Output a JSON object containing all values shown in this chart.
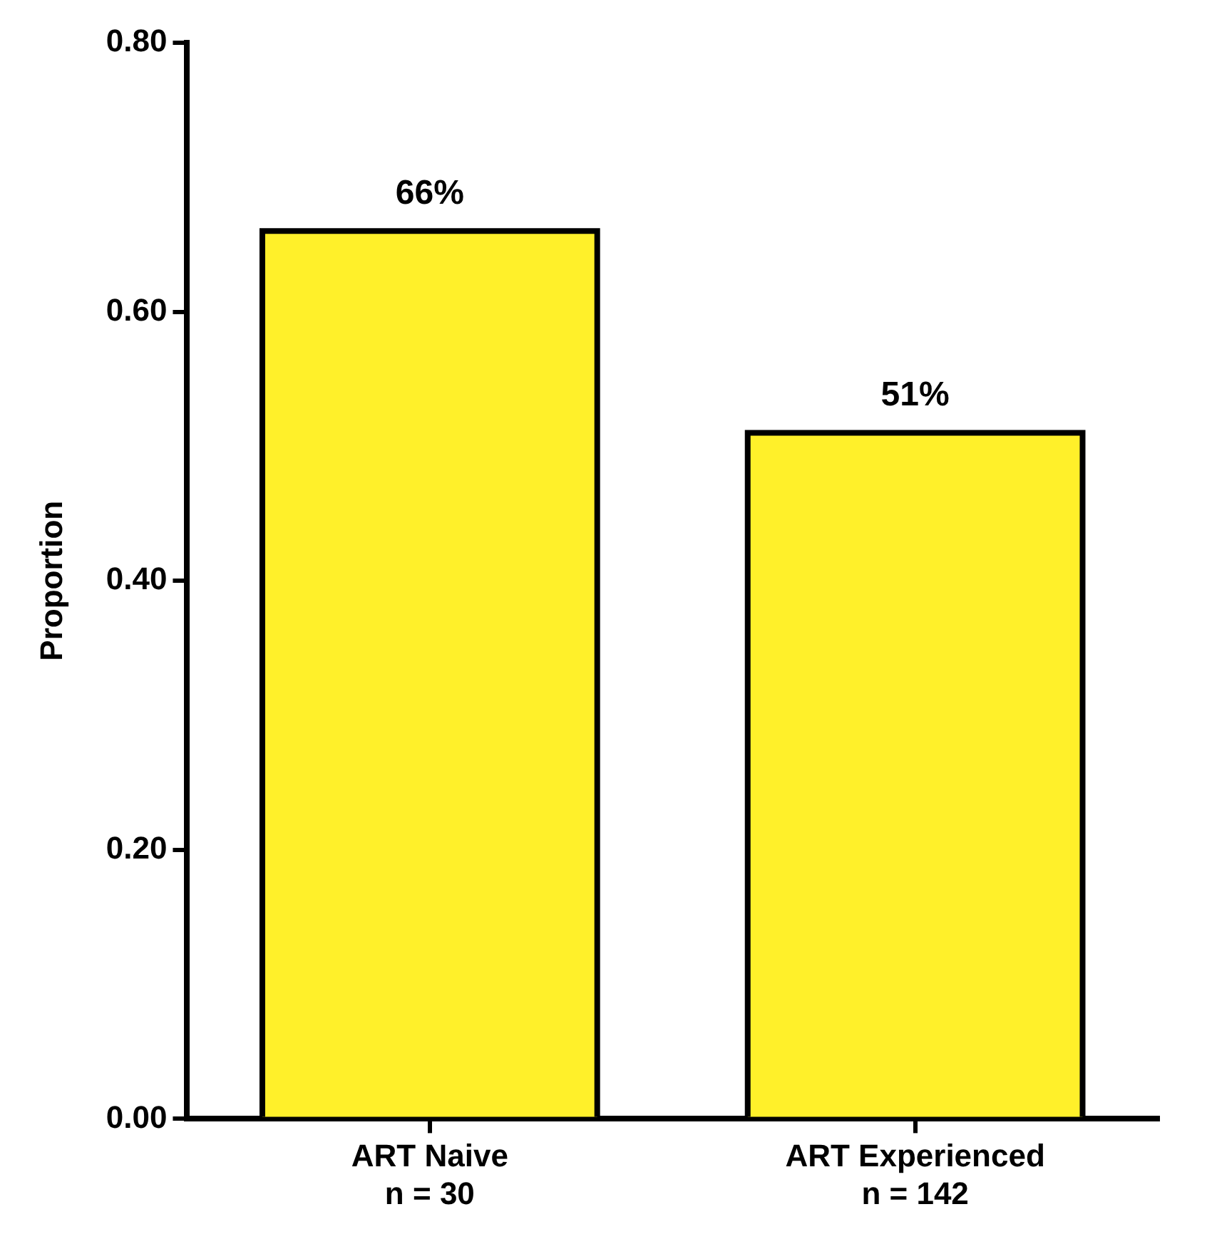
{
  "chart_data": {
    "type": "bar",
    "ylabel": "Proportion",
    "categories": [
      "ART Naive\nn = 30",
      "ART Experienced\nn = 142"
    ],
    "values": [
      0.66,
      0.51
    ],
    "value_labels": [
      "66%",
      "51%"
    ],
    "color": "#fff02a",
    "ylim": [
      0,
      0.8
    ],
    "yticks": [
      {
        "value": 0,
        "label": "0.00"
      },
      {
        "value": 0.2,
        "label": "0.20"
      },
      {
        "value": 0.4,
        "label": "0.40"
      },
      {
        "value": 0.6,
        "label": "0.60"
      },
      {
        "value": 0.8,
        "label": "0.80"
      }
    ],
    "legend": false
  }
}
